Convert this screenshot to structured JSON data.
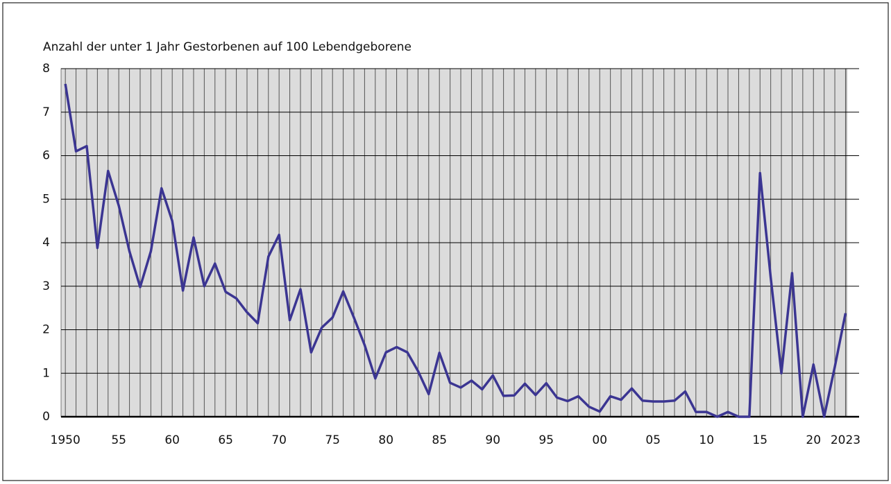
{
  "chart_data": {
    "type": "line",
    "y_label": "Anzahl der unter 1 Jahr Gestorbenen auf 100 Lebendgeborene",
    "x": [
      1950,
      1951,
      1952,
      1953,
      1954,
      1955,
      1956,
      1957,
      1958,
      1959,
      1960,
      1961,
      1962,
      1963,
      1964,
      1965,
      1966,
      1967,
      1968,
      1969,
      1970,
      1971,
      1972,
      1973,
      1974,
      1975,
      1976,
      1977,
      1978,
      1979,
      1980,
      1981,
      1982,
      1983,
      1984,
      1985,
      1986,
      1987,
      1988,
      1989,
      1990,
      1991,
      1992,
      1993,
      1994,
      1995,
      1996,
      1997,
      1998,
      1999,
      2000,
      2001,
      2002,
      2003,
      2004,
      2005,
      2006,
      2007,
      2008,
      2009,
      2010,
      2011,
      2012,
      2013,
      2014,
      2015,
      2016,
      2017,
      2018,
      2019,
      2020,
      2021,
      2022,
      2023
    ],
    "series": [
      {
        "color": "#3b3592",
        "values": [
          7.65,
          6.1,
          6.22,
          3.88,
          5.65,
          4.85,
          3.8,
          2.98,
          3.8,
          5.25,
          4.5,
          2.9,
          4.12,
          3.0,
          3.52,
          2.87,
          2.72,
          2.4,
          2.15,
          3.68,
          4.18,
          2.22,
          2.93,
          1.48,
          2.05,
          2.28,
          2.88,
          2.28,
          1.65,
          0.88,
          1.48,
          1.6,
          1.48,
          1.05,
          0.52,
          1.47,
          0.78,
          0.67,
          0.83,
          0.63,
          0.95,
          0.48,
          0.49,
          0.76,
          0.5,
          0.77,
          0.44,
          0.36,
          0.47,
          0.23,
          0.12,
          0.47,
          0.39,
          0.65,
          0.37,
          0.35,
          0.35,
          0.37,
          0.58,
          0.11,
          0.11,
          0.0,
          0.11,
          0.0,
          0.0,
          5.6,
          3.2,
          1.0,
          3.3,
          0.0,
          1.2,
          0.0,
          1.15,
          2.38
        ]
      }
    ],
    "xlim": [
      1949.6,
      2023.1
    ],
    "xticks": [
      1950,
      {
        "value": 1955,
        "label": "55"
      },
      {
        "value": 1960,
        "label": "60"
      },
      {
        "value": 1965,
        "label": "65"
      },
      {
        "value": 1970,
        "label": "70"
      },
      {
        "value": 1975,
        "label": "75"
      },
      {
        "value": 1980,
        "label": "80"
      },
      {
        "value": 1985,
        "label": "85"
      },
      {
        "value": 1990,
        "label": "90"
      },
      {
        "value": 1995,
        "label": "95"
      },
      {
        "value": 2000,
        "label": "00"
      },
      {
        "value": 2005,
        "label": "05"
      },
      {
        "value": 2010,
        "label": "10"
      },
      {
        "value": 2015,
        "label": "15"
      },
      {
        "value": 2020,
        "label": "20"
      },
      2023
    ],
    "ylim": [
      0,
      8
    ],
    "yticks": [
      0,
      1,
      2,
      3,
      4,
      5,
      6,
      7,
      8
    ],
    "grid": true
  }
}
